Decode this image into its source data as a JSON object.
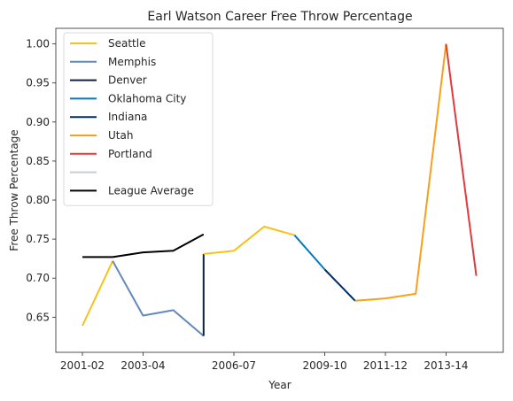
{
  "chart_data": {
    "type": "line",
    "title": "Earl Watson Career Free Throw Percentage",
    "xlabel": "Year",
    "ylabel": "Free Throw Percentage",
    "x_categories": [
      "2001-02",
      "2002-03",
      "2003-04",
      "2004-05",
      "2005-06",
      "2006-07",
      "2007-08",
      "2008-09",
      "2009-10",
      "2010-11",
      "2011-12",
      "2012-13",
      "2013-14"
    ],
    "x_tick_labels": [
      "2001-02",
      "2003-04",
      "2006-07",
      "2009-10",
      "2011-12",
      "2013-14"
    ],
    "ylim": [
      0.605,
      1.02
    ],
    "y_ticks": [
      0.65,
      0.7,
      0.75,
      0.8,
      0.85,
      0.9,
      0.95,
      1.0
    ],
    "y_tick_labels": [
      "0.65",
      "0.70",
      "0.75",
      "0.80",
      "0.85",
      "0.90",
      "0.95",
      "1.00"
    ],
    "grid": false,
    "legend_position": "top-left",
    "series": [
      {
        "name": "Seattle",
        "color": "#f7c11b",
        "points": [
          [
            "2001-02",
            0.639
          ],
          [
            "2002-03",
            0.722
          ]
        ]
      },
      {
        "name": "Memphis",
        "color": "#6189b9",
        "points": [
          [
            "2002-03",
            0.722
          ],
          [
            "2003-04",
            0.652
          ],
          [
            "2004-05",
            0.659
          ],
          [
            "2005-06",
            0.626
          ]
        ]
      },
      {
        "name": "Denver",
        "color": "#0e2240",
        "points": [
          [
            "2005-06",
            0.626
          ],
          [
            "2005-06",
            0.731
          ]
        ]
      },
      {
        "name": "Seattle",
        "legend": false,
        "color": "#f7c11b",
        "points": [
          [
            "2005-06",
            0.731
          ],
          [
            "2006-07",
            0.735
          ],
          [
            "2007-08",
            0.766
          ],
          [
            "2008-09",
            0.755
          ]
        ]
      },
      {
        "name": "Oklahoma City",
        "color": "#007ac1",
        "points": [
          [
            "2008-09",
            0.755
          ],
          [
            "2009-10",
            0.711
          ]
        ]
      },
      {
        "name": "Indiana",
        "color": "#002d62",
        "points": [
          [
            "2009-10",
            0.711
          ],
          [
            "2010-11",
            0.671
          ]
        ]
      },
      {
        "name": "Utah",
        "color": "#f9a01b",
        "points": [
          [
            "2010-11",
            0.671
          ],
          [
            "2011-12",
            0.674
          ],
          [
            "2012-13",
            0.68
          ],
          [
            "2013-14",
            1.0
          ]
        ]
      },
      {
        "name": "Portland",
        "color": "#e03a3e",
        "points": [
          [
            "2013-14",
            1.0
          ],
          [
            "2014-15",
            0.703
          ]
        ]
      },
      {
        "name": "",
        "color": "#c4ced4",
        "points": []
      },
      {
        "name": "League Average",
        "color": "#000000",
        "points": [
          [
            "2001-02",
            0.727
          ],
          [
            "2002-03",
            0.727
          ],
          [
            "2003-04",
            0.733
          ],
          [
            "2004-05",
            0.735
          ],
          [
            "2005-06",
            0.756
          ]
        ]
      }
    ]
  }
}
